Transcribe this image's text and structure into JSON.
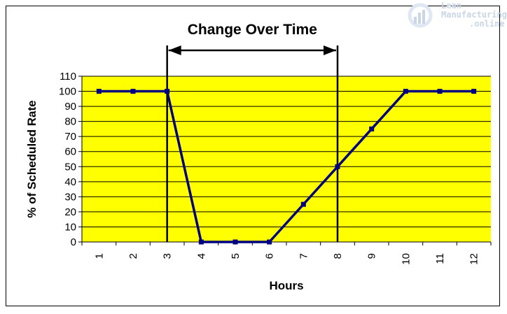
{
  "chart_data": {
    "type": "line",
    "x": [
      1,
      2,
      3,
      4,
      5,
      6,
      7,
      8,
      9,
      10,
      11,
      12
    ],
    "tick_labels_x": [
      "1",
      "2",
      "3",
      "4",
      "5",
      "6",
      "7",
      "8",
      "9",
      "10",
      "11",
      "12"
    ],
    "series": [
      {
        "values": [
          100,
          100,
          100,
          0,
          0,
          0,
          25,
          50,
          75,
          100,
          100,
          100
        ]
      }
    ],
    "xlabel": "Hours",
    "ylabel": "% of Scheduled Rate",
    "ylim": [
      0,
      110
    ],
    "yticks": [
      0,
      10,
      20,
      30,
      40,
      50,
      60,
      70,
      80,
      90,
      100,
      110
    ],
    "grid": true,
    "annotation": {
      "text": "Change Over Time",
      "x_start": 3,
      "x_end": 8
    },
    "colors": {
      "plot_background": "#ffff00",
      "line": "#000080",
      "grid": "#000000"
    }
  },
  "watermark": {
    "line1": "Lean",
    "line2": "Manufacturing",
    "line3": ".online"
  }
}
